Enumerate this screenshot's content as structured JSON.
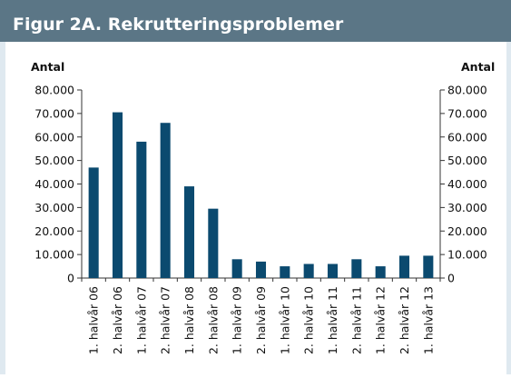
{
  "chart_data": {
    "type": "bar",
    "title": "Figur 2A. Rekrutteringsproblemer",
    "ylabel": "Antal",
    "y2label": "Antal",
    "categories": [
      "1. halvår 06",
      "2. halvår 06",
      "1. halvår 07",
      "2. halvår 07",
      "1. halvår 08",
      "2. halvår 08",
      "1. halvår 09",
      "2. halvår 09",
      "1. halvår 10",
      "2. halvår 10",
      "1. halvår 11",
      "2. halvår 11",
      "1. halvår 12",
      "2. halvår 12",
      "1. halvår 13"
    ],
    "values": [
      47000,
      70500,
      58000,
      66000,
      39000,
      29500,
      8000,
      7000,
      5000,
      6000,
      6000,
      8000,
      5000,
      9500,
      9500
    ],
    "color": "#0b4a6f",
    "ylim": [
      0,
      80000
    ],
    "yticks": [
      0,
      {
        "value": 10000,
        "label": "10.000"
      },
      {
        "value": 20000,
        "label": "20.000"
      },
      {
        "value": 30000,
        "label": "30.000"
      },
      {
        "value": 40000,
        "label": "40.000"
      },
      {
        "value": 50000,
        "label": "50.000"
      },
      {
        "value": 60000,
        "label": "60.000"
      },
      {
        "value": 70000,
        "label": "70.000"
      },
      {
        "value": 80000,
        "label": "80.000"
      }
    ],
    "y2lim": [
      0,
      80000
    ],
    "y2ticks": [
      0,
      {
        "value": 10000,
        "label": "10.000"
      },
      {
        "value": 20000,
        "label": "20.000"
      },
      {
        "value": 30000,
        "label": "30.000"
      },
      {
        "value": 40000,
        "label": "40.000"
      },
      {
        "value": 50000,
        "label": "50.000"
      },
      {
        "value": 60000,
        "label": "60.000"
      },
      {
        "value": 70000,
        "label": "70.000"
      },
      {
        "value": 80000,
        "label": "80.000"
      }
    ],
    "grid": false
  }
}
